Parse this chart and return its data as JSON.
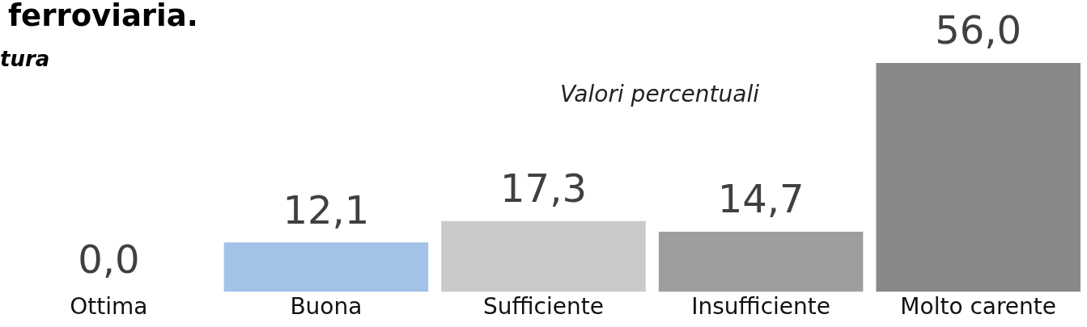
{
  "chart_data": {
    "type": "bar",
    "title": "ferroviaria.",
    "subtitle": "tura",
    "annotations": [
      "Valori percentuali"
    ],
    "categories": [
      "Ottima",
      "Buona",
      "Sufficiente",
      "Insufficiente",
      "Molto carente"
    ],
    "values": [
      0.0,
      12.1,
      17.3,
      14.7,
      56.0
    ],
    "colors": [
      "#c8c8c8",
      "#a3c2e8",
      "#cacaca",
      "#9e9e9e",
      "#888888"
    ],
    "value_labels": [
      "0,0",
      "12,1",
      "17,3",
      "14,7",
      "56,0"
    ]
  }
}
